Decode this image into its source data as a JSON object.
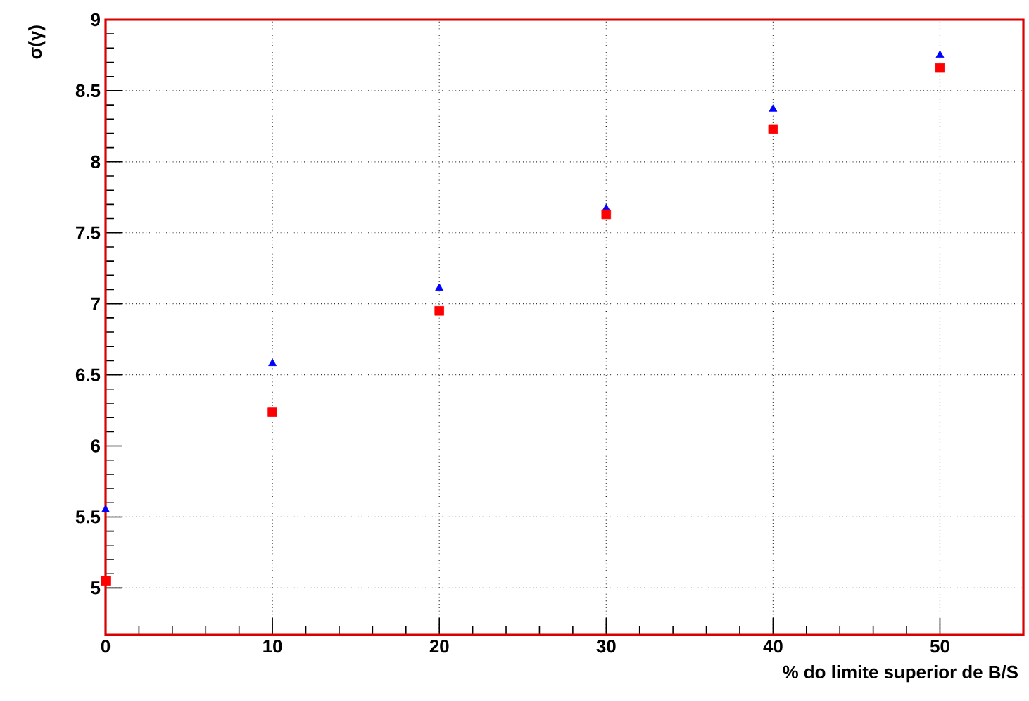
{
  "chart_data": {
    "type": "scatter",
    "xlabel": "% do limite superior de B/S",
    "ylabel": "σ(γ)",
    "x": [
      0,
      10,
      20,
      30,
      40,
      50
    ],
    "series": [
      {
        "color": "#0000ff",
        "marker": "triangle",
        "values": [
          5.55,
          6.58,
          7.11,
          7.67,
          8.37,
          8.75
        ]
      },
      {
        "color": "#ff0000",
        "marker": "square",
        "values": [
          5.05,
          6.24,
          6.95,
          7.63,
          8.23,
          8.66
        ]
      }
    ],
    "xlim": [
      0,
      55
    ],
    "ylim": [
      4.67,
      9
    ],
    "xticks": [
      0,
      10,
      20,
      30,
      40,
      50
    ],
    "yticks": [
      5,
      5.5,
      6,
      6.5,
      7,
      7.5,
      8,
      8.5,
      9
    ],
    "grid": true
  }
}
